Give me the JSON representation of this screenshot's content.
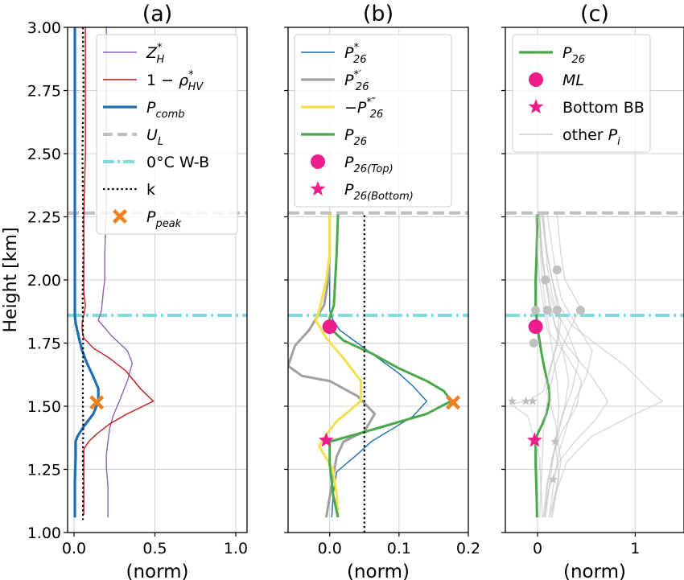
{
  "figure": {
    "ylabel": "Height [km]",
    "ylim": [
      1.0,
      3.0
    ],
    "yticks": [
      "1.00",
      "1.25",
      "1.50",
      "1.75",
      "2.00",
      "2.25",
      "2.50",
      "2.75",
      "3.00"
    ],
    "ref_lines": {
      "U_L": 2.265,
      "zero_wb": 1.86
    },
    "colors": {
      "ZH": "#8e5fb8",
      "rho": "#c2191b",
      "Pcomb": "#1f6fb0",
      "UL": "#c0c0c0",
      "WB": "#7fdcdc",
      "k": "#000000",
      "peak": "#f07f20",
      "P26star": "#1f6fb0",
      "P26p": "#a0a0a0",
      "P26pp": "#f5df4d",
      "P26": "#4aa84a",
      "ML": "#ee1d8c",
      "other": "#c0c0c0"
    }
  },
  "chart_data": [
    {
      "type": "line",
      "title": "(a)",
      "xlabel": "(norm)",
      "xlim": [
        -0.04,
        1.07
      ],
      "xticks": [
        "0.0",
        "0.5",
        "1.0"
      ],
      "xtick_values": [
        0,
        0.5,
        1.0
      ],
      "legend": {
        "position": "upper-right",
        "entries": [
          {
            "key": "ZH",
            "label": "Z*H",
            "style": "line-thin"
          },
          {
            "key": "rho",
            "label": "1 − ρ*HV",
            "style": "line-thin"
          },
          {
            "key": "Pcomb",
            "label": "Pcomb",
            "style": "line-thick"
          },
          {
            "key": "UL",
            "label": "UL",
            "style": "dashed"
          },
          {
            "key": "WB",
            "label": "0°C W-B",
            "style": "dashdot"
          },
          {
            "key": "k",
            "label": "k",
            "style": "dotted"
          },
          {
            "key": "peak",
            "label": "Ppeak",
            "style": "x-marker"
          }
        ]
      },
      "series": [
        {
          "name": "Z*H",
          "x": [
            0.2,
            0.2,
            0.2,
            0.2,
            0.19,
            0.19,
            0.18,
            0.17,
            0.15,
            0.23,
            0.33,
            0.36,
            0.33,
            0.28,
            0.24,
            0.22,
            0.21,
            0.2,
            0.2,
            0.21,
            0.21,
            0.21
          ],
          "y": [
            3.0,
            2.75,
            2.5,
            2.3,
            2.1,
            2.0,
            1.95,
            1.88,
            1.84,
            1.78,
            1.72,
            1.67,
            1.6,
            1.52,
            1.46,
            1.41,
            1.36,
            1.31,
            1.26,
            1.18,
            1.12,
            1.06
          ]
        },
        {
          "name": "1 − ρ*HV",
          "x": [
            0.07,
            0.07,
            0.06,
            0.06,
            0.06,
            0.07,
            0.06,
            0.05,
            0.05,
            0.06,
            0.12,
            0.22,
            0.32,
            0.41,
            0.49,
            0.33,
            0.22,
            0.14,
            0.09,
            0.06,
            0.06,
            0.06,
            0.06
          ],
          "y": [
            3.0,
            2.5,
            2.25,
            2.0,
            1.95,
            1.9,
            1.86,
            1.83,
            1.8,
            1.77,
            1.73,
            1.69,
            1.64,
            1.57,
            1.52,
            1.47,
            1.43,
            1.39,
            1.36,
            1.33,
            1.25,
            1.15,
            1.07
          ]
        },
        {
          "name": "Pcomb",
          "x": [
            0.005,
            0.005,
            0.005,
            0.005,
            0.005,
            0.005,
            0.005,
            0.005,
            0.01,
            0.03,
            0.05,
            0.08,
            0.11,
            0.13,
            0.15,
            0.15,
            0.12,
            0.06,
            0.02,
            0.01,
            0.01,
            0.005,
            0.005,
            0.005
          ],
          "y": [
            3.0,
            2.5,
            2.25,
            2.1,
            2.0,
            1.95,
            1.9,
            1.86,
            1.83,
            1.77,
            1.72,
            1.67,
            1.63,
            1.6,
            1.57,
            1.52,
            1.47,
            1.42,
            1.38,
            1.36,
            1.3,
            1.2,
            1.1,
            1.06
          ]
        },
        {
          "name": "k",
          "x": [
            0.055,
            0.058,
            0.052,
            0.055,
            0.057,
            0.053,
            0.055,
            0.056,
            0.054,
            0.055,
            0.057,
            0.054,
            0.056,
            0.055,
            0.055
          ],
          "y": [
            3.0,
            2.75,
            2.5,
            2.3,
            2.1,
            1.95,
            1.8,
            1.7,
            1.6,
            1.5,
            1.4,
            1.3,
            1.2,
            1.1,
            1.05
          ]
        }
      ],
      "markers": [
        {
          "key": "peak",
          "shape": "x",
          "x": 0.14,
          "y": 1.515
        }
      ]
    },
    {
      "type": "line",
      "title": "(b)",
      "xlabel": "(norm)",
      "xlim": [
        -0.06,
        0.2
      ],
      "xticks": [
        "0.0",
        "0.1",
        "0.2"
      ],
      "xtick_values": [
        0,
        0.1,
        0.2
      ],
      "legend": {
        "position": "upper-left",
        "entries": [
          {
            "key": "P26star",
            "label": "P*26",
            "style": "line-thin"
          },
          {
            "key": "P26p",
            "label": "P*26′",
            "style": "line-thick"
          },
          {
            "key": "P26pp",
            "label": "−P*26″",
            "style": "line-thick"
          },
          {
            "key": "P26",
            "label": "P26",
            "style": "line-thick"
          },
          {
            "key": "ML",
            "label": "P26(Top)",
            "style": "dot-marker"
          },
          {
            "key": "ML",
            "label": "P26(Bottom)",
            "style": "star-marker"
          }
        ]
      },
      "series": [
        {
          "name": "P*26",
          "x": [
            0.0,
            0.0,
            0.0,
            0.0,
            0.005,
            0.015,
            0.04,
            0.07,
            0.1,
            0.12,
            0.14,
            0.12,
            0.09,
            0.06,
            0.04,
            0.01,
            0.005,
            0.003
          ],
          "y": [
            2.26,
            2.1,
            1.95,
            1.88,
            1.84,
            1.8,
            1.75,
            1.69,
            1.63,
            1.58,
            1.52,
            1.46,
            1.41,
            1.36,
            1.31,
            1.24,
            1.15,
            1.06
          ]
        },
        {
          "name": "P*26′",
          "x": [
            0.0,
            0.0,
            -0.002,
            -0.008,
            -0.03,
            -0.05,
            -0.06,
            -0.04,
            0.0,
            0.04,
            0.065,
            0.05,
            0.02,
            0.01,
            0.005,
            0.0,
            -0.005
          ],
          "y": [
            2.26,
            2.1,
            2.0,
            1.9,
            1.8,
            1.74,
            1.66,
            1.62,
            1.6,
            1.54,
            1.47,
            1.4,
            1.36,
            1.3,
            1.22,
            1.14,
            1.06
          ]
        },
        {
          "name": "−P*26″",
          "x": [
            0.0,
            0.0,
            -0.005,
            -0.015,
            -0.02,
            -0.005,
            0.02,
            0.045,
            0.045,
            0.01,
            -0.01,
            -0.015,
            0.005,
            0.01,
            0.012
          ],
          "y": [
            2.26,
            2.1,
            2.0,
            1.88,
            1.84,
            1.77,
            1.69,
            1.6,
            1.52,
            1.44,
            1.37,
            1.34,
            1.25,
            1.15,
            1.06
          ]
        },
        {
          "name": "P26",
          "x": [
            0.012,
            0.01,
            0.008,
            0.006,
            0.0,
            0.0,
            0.02,
            0.06,
            0.1,
            0.14,
            0.165,
            0.175,
            0.14,
            0.09,
            0.04,
            0.0,
            0.0,
            0.005,
            0.012
          ],
          "y": [
            2.26,
            2.1,
            2.0,
            1.9,
            1.85,
            1.81,
            1.76,
            1.71,
            1.65,
            1.6,
            1.56,
            1.52,
            1.47,
            1.43,
            1.39,
            1.36,
            1.27,
            1.15,
            1.06
          ]
        },
        {
          "name": "k",
          "x": [
            0.05,
            0.05
          ],
          "y": [
            1.0,
            2.26
          ]
        }
      ],
      "markers": [
        {
          "key": "ML",
          "shape": "dot",
          "x": 0.0,
          "y": 1.815
        },
        {
          "key": "ML",
          "shape": "star",
          "x": -0.005,
          "y": 1.365
        },
        {
          "key": "peak",
          "shape": "x",
          "x": 0.178,
          "y": 1.515
        }
      ]
    },
    {
      "type": "line",
      "title": "(c)",
      "xlabel": "(norm)",
      "xlim": [
        -0.33,
        1.5
      ],
      "xticks": [
        "0",
        "1"
      ],
      "xtick_values": [
        0,
        1
      ],
      "legend": {
        "position": "upper-left",
        "entries": [
          {
            "key": "P26",
            "label": "P26",
            "style": "line-thick"
          },
          {
            "key": "ML",
            "label": "ML",
            "style": "dot-marker"
          },
          {
            "key": "ML",
            "label": "Bottom BB",
            "style": "star-marker"
          },
          {
            "key": "other",
            "label": "other Pi",
            "style": "line-thin"
          }
        ]
      },
      "series": [
        {
          "name": "P26",
          "x": [
            0.0,
            -0.01,
            -0.02,
            -0.02,
            -0.01,
            0.0,
            0.02,
            0.04,
            0.07,
            0.1,
            0.12,
            0.12,
            0.09,
            0.05,
            0.0,
            -0.02,
            -0.02,
            -0.01,
            -0.005
          ],
          "y": [
            2.26,
            2.1,
            2.0,
            1.9,
            1.85,
            1.81,
            1.76,
            1.71,
            1.65,
            1.6,
            1.56,
            1.52,
            1.47,
            1.43,
            1.39,
            1.36,
            1.27,
            1.15,
            1.06
          ]
        },
        {
          "name": "",
          "x": [
            0.02,
            0.04,
            0.08,
            0.12,
            0.18,
            0.3,
            0.55,
            0.72,
            0.58,
            0.38,
            0.22,
            0.12,
            0.08,
            0.06
          ],
          "y": [
            2.26,
            2.1,
            2.0,
            1.9,
            1.82,
            1.74,
            1.62,
            1.52,
            1.44,
            1.36,
            1.28,
            1.18,
            1.1,
            1.06
          ]
        },
        {
          "name": "",
          "x": [
            0.05,
            0.1,
            0.15,
            0.22,
            0.35,
            0.62,
            0.9,
            1.1,
            1.28,
            0.95,
            0.55,
            0.3,
            0.18,
            0.12
          ],
          "y": [
            2.26,
            2.1,
            2.0,
            1.9,
            1.82,
            1.74,
            1.66,
            1.58,
            1.52,
            1.46,
            1.38,
            1.28,
            1.15,
            1.06
          ]
        },
        {
          "name": "",
          "x": [
            0.1,
            0.16,
            0.2,
            0.25,
            0.4,
            0.56,
            0.5,
            0.38,
            0.3,
            0.22,
            0.16,
            0.12
          ],
          "y": [
            2.26,
            2.1,
            2.0,
            1.92,
            1.82,
            1.72,
            1.62,
            1.52,
            1.42,
            1.32,
            1.18,
            1.06
          ]
        },
        {
          "name": "",
          "x": [
            0.2,
            0.24,
            0.28,
            0.44,
            0.3,
            0.18,
            0.1,
            0.06,
            0.04,
            0.02
          ],
          "y": [
            2.26,
            2.1,
            2.0,
            1.89,
            1.78,
            1.66,
            1.52,
            1.4,
            1.22,
            1.06
          ]
        },
        {
          "name": "",
          "x": [
            0.02,
            0.05,
            0.08,
            0.16,
            0.3,
            0.42,
            0.35,
            0.25,
            0.18,
            0.22,
            0.15
          ],
          "y": [
            2.26,
            2.1,
            2.0,
            1.9,
            1.8,
            1.68,
            1.56,
            1.46,
            1.36,
            1.22,
            1.06
          ]
        },
        {
          "name": "",
          "x": [
            0.06,
            0.1,
            0.16,
            0.24,
            0.2,
            0.12,
            0.06,
            -0.1,
            -0.28,
            -0.1,
            0.02,
            0.05
          ],
          "y": [
            2.26,
            2.05,
            1.92,
            1.84,
            1.74,
            1.64,
            1.56,
            1.52,
            1.51,
            1.46,
            1.3,
            1.06
          ]
        },
        {
          "name": "",
          "x": [
            0.0,
            0.04,
            0.08,
            0.12,
            0.18,
            0.26,
            0.32,
            0.28,
            0.22,
            0.16,
            0.1,
            0.06
          ],
          "y": [
            2.26,
            2.12,
            2.0,
            1.92,
            1.82,
            1.72,
            1.6,
            1.5,
            1.4,
            1.3,
            1.2,
            1.06
          ]
        },
        {
          "name": "",
          "x": [
            0.04,
            0.08,
            0.14,
            0.18,
            0.22,
            0.2,
            0.14,
            0.09,
            0.18,
            0.24,
            0.14
          ],
          "y": [
            2.26,
            2.14,
            2.02,
            1.94,
            1.86,
            1.76,
            1.66,
            1.56,
            1.44,
            1.28,
            1.06
          ]
        },
        {
          "name": "",
          "x": [
            -0.02,
            0.0,
            0.02,
            0.06,
            0.1,
            0.3,
            0.45,
            0.4,
            0.25,
            0.15,
            0.1,
            0.08
          ],
          "y": [
            2.26,
            2.1,
            2.0,
            1.9,
            1.8,
            1.7,
            1.6,
            1.5,
            1.4,
            1.3,
            1.18,
            1.06
          ]
        },
        {
          "name": "",
          "x": [
            0.02,
            0.03,
            0.05,
            0.08,
            0.12,
            0.16,
            0.2,
            0.22,
            0.2,
            0.16,
            0.12,
            0.08
          ],
          "y": [
            2.26,
            2.1,
            2.0,
            1.9,
            1.8,
            1.7,
            1.6,
            1.5,
            1.4,
            1.3,
            1.18,
            1.06
          ]
        }
      ],
      "markers": [
        {
          "key": "ML",
          "shape": "dot",
          "x": -0.02,
          "y": 1.815
        },
        {
          "key": "ML",
          "shape": "star",
          "x": -0.03,
          "y": 1.365
        },
        {
          "key": "other",
          "shape": "dot",
          "x": 0.2,
          "y": 2.04
        },
        {
          "key": "other",
          "shape": "dot",
          "x": 0.08,
          "y": 2.0
        },
        {
          "key": "other",
          "shape": "dot",
          "x": -0.02,
          "y": 1.88
        },
        {
          "key": "other",
          "shape": "dot",
          "x": 0.1,
          "y": 1.88
        },
        {
          "key": "other",
          "shape": "dot",
          "x": 0.2,
          "y": 1.88
        },
        {
          "key": "other",
          "shape": "dot",
          "x": 0.44,
          "y": 1.88
        },
        {
          "key": "other",
          "shape": "dot",
          "x": -0.04,
          "y": 1.75
        },
        {
          "key": "other",
          "shape": "star",
          "x": -0.26,
          "y": 1.52
        },
        {
          "key": "other",
          "shape": "star",
          "x": -0.12,
          "y": 1.52
        },
        {
          "key": "other",
          "shape": "star",
          "x": -0.05,
          "y": 1.52
        },
        {
          "key": "other",
          "shape": "star",
          "x": 0.18,
          "y": 1.36
        },
        {
          "key": "other",
          "shape": "star",
          "x": 0.16,
          "y": 1.21
        }
      ]
    }
  ]
}
